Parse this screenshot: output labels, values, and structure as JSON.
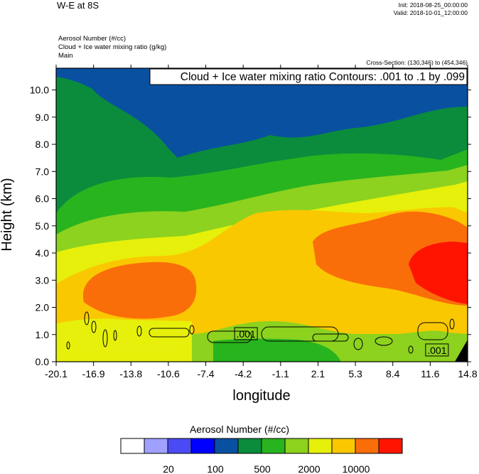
{
  "header": {
    "title": "W-E at 8S",
    "init": "Init: 2018-08-25_00:00:00",
    "valid": "Valid: 2018-10-01_12:00:00",
    "fields": [
      "Aerosol Number   (#/cc)",
      "Cloud + Ice water mixing ratio   (g/kg)",
      "Main"
    ],
    "cross_section": "Cross-Section: (130,346) to (454,346)"
  },
  "chart_data": {
    "type": "heatmap",
    "contour_info": "Cloud + Ice water mixing ratio Contours: .001 to .1 by .099",
    "xlabel": "longitude",
    "ylabel": "Height (km)",
    "xticks": [
      "-20.1",
      "-16.9",
      "-13.8",
      "-10.6",
      "-7.4",
      "-4.2",
      "-1.1",
      "2.1",
      "5.3",
      "8.4",
      "11.6",
      "14.8"
    ],
    "yticks": [
      "0.0",
      "1.0",
      "2.0",
      "3.0",
      "4.0",
      "5.0",
      "6.0",
      "7.0",
      "8.0",
      "9.0",
      "10.0"
    ],
    "xlim": [
      -20.1,
      14.8
    ],
    "ylim": [
      0,
      10.8
    ],
    "contour_labels": [
      {
        "text": ".001",
        "lon": -4.0,
        "km": 1.02
      },
      {
        "text": ".001",
        "lon": 12.2,
        "km": 0.42
      }
    ],
    "colorbar": {
      "title": "Aerosol Number  (#/cc)",
      "colors": [
        "#ffffff",
        "#a0a0ff",
        "#4b4bf5",
        "#0000ff",
        "#0a50a0",
        "#0a8c3c",
        "#28b41e",
        "#8cd21e",
        "#e6f00a",
        "#fac800",
        "#fa6e0a",
        "#ff1400"
      ],
      "labels": [
        "20",
        "100",
        "500",
        "2000",
        "10000"
      ]
    }
  }
}
